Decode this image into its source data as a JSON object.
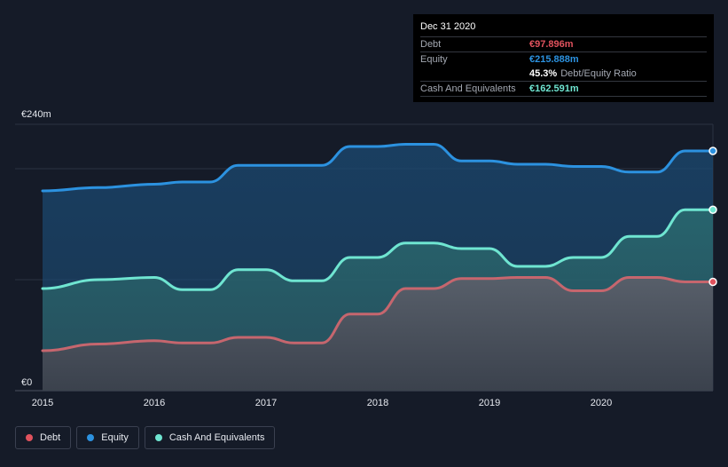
{
  "colors": {
    "debt": "#e0525d",
    "equity": "#2c92e0",
    "cash": "#6fe5d1",
    "debt_line": "#c6666e",
    "ratio_value": "#ffffff"
  },
  "tooltip": {
    "date": "Dec 31 2020",
    "rows": {
      "debt": {
        "label": "Debt",
        "value": "€97.896m"
      },
      "equity": {
        "label": "Equity",
        "value": "€215.888m"
      },
      "ratio": {
        "value": "45.3%",
        "label": "Debt/Equity Ratio"
      },
      "cash": {
        "label": "Cash And Equivalents",
        "value": "€162.591m"
      }
    }
  },
  "legend": {
    "debt": "Debt",
    "equity": "Equity",
    "cash": "Cash And Equivalents"
  },
  "chart_data": {
    "type": "area",
    "title": "",
    "xlabel": "",
    "ylabel": "",
    "ylim": [
      0,
      240
    ],
    "y_ticks": [
      {
        "value": 0,
        "label": "€0"
      },
      {
        "value": 240,
        "label": "€240m"
      }
    ],
    "gridlines_y": [
      0,
      100,
      200,
      240
    ],
    "xlim": [
      2015.0,
      2021.0
    ],
    "x_ticks": [
      {
        "value": 2015,
        "label": "2015"
      },
      {
        "value": 2016,
        "label": "2016"
      },
      {
        "value": 2017,
        "label": "2017"
      },
      {
        "value": 2018,
        "label": "2018"
      },
      {
        "value": 2019,
        "label": "2019"
      },
      {
        "value": 2020,
        "label": "2020"
      }
    ],
    "legend_position": "bottom-left",
    "series": [
      {
        "key": "equity",
        "name": "Equity",
        "points": [
          [
            2015.0,
            180
          ],
          [
            2015.5,
            183
          ],
          [
            2016.0,
            186
          ],
          [
            2016.25,
            188
          ],
          [
            2016.5,
            188
          ],
          [
            2016.75,
            203
          ],
          [
            2017.0,
            203
          ],
          [
            2017.5,
            203
          ],
          [
            2017.75,
            220
          ],
          [
            2018.0,
            220
          ],
          [
            2018.25,
            222
          ],
          [
            2018.5,
            222
          ],
          [
            2018.75,
            207
          ],
          [
            2019.0,
            207
          ],
          [
            2019.25,
            204
          ],
          [
            2019.5,
            204
          ],
          [
            2019.75,
            202
          ],
          [
            2020.0,
            202
          ],
          [
            2020.25,
            197
          ],
          [
            2020.5,
            197
          ],
          [
            2020.75,
            216
          ],
          [
            2021.0,
            216
          ]
        ]
      },
      {
        "key": "cash",
        "name": "Cash And Equivalents",
        "points": [
          [
            2015.0,
            92
          ],
          [
            2015.5,
            100
          ],
          [
            2016.0,
            102
          ],
          [
            2016.25,
            91
          ],
          [
            2016.5,
            91
          ],
          [
            2016.75,
            109
          ],
          [
            2017.0,
            109
          ],
          [
            2017.25,
            99
          ],
          [
            2017.5,
            99
          ],
          [
            2017.75,
            120
          ],
          [
            2018.0,
            120
          ],
          [
            2018.25,
            133
          ],
          [
            2018.5,
            133
          ],
          [
            2018.75,
            128
          ],
          [
            2019.0,
            128
          ],
          [
            2019.25,
            112
          ],
          [
            2019.5,
            112
          ],
          [
            2019.75,
            120
          ],
          [
            2020.0,
            120
          ],
          [
            2020.25,
            139
          ],
          [
            2020.5,
            139
          ],
          [
            2020.75,
            163
          ],
          [
            2021.0,
            163
          ]
        ]
      },
      {
        "key": "debt",
        "name": "Debt",
        "points": [
          [
            2015.0,
            36
          ],
          [
            2015.5,
            42
          ],
          [
            2016.0,
            45
          ],
          [
            2016.25,
            43
          ],
          [
            2016.5,
            43
          ],
          [
            2016.75,
            48
          ],
          [
            2017.0,
            48
          ],
          [
            2017.25,
            43
          ],
          [
            2017.5,
            43
          ],
          [
            2017.75,
            69
          ],
          [
            2018.0,
            69
          ],
          [
            2018.25,
            92
          ],
          [
            2018.5,
            92
          ],
          [
            2018.75,
            101
          ],
          [
            2019.0,
            101
          ],
          [
            2019.25,
            102
          ],
          [
            2019.5,
            102
          ],
          [
            2019.75,
            90
          ],
          [
            2020.0,
            90
          ],
          [
            2020.25,
            102
          ],
          [
            2020.5,
            102
          ],
          [
            2020.75,
            98
          ],
          [
            2021.0,
            98
          ]
        ]
      }
    ]
  }
}
